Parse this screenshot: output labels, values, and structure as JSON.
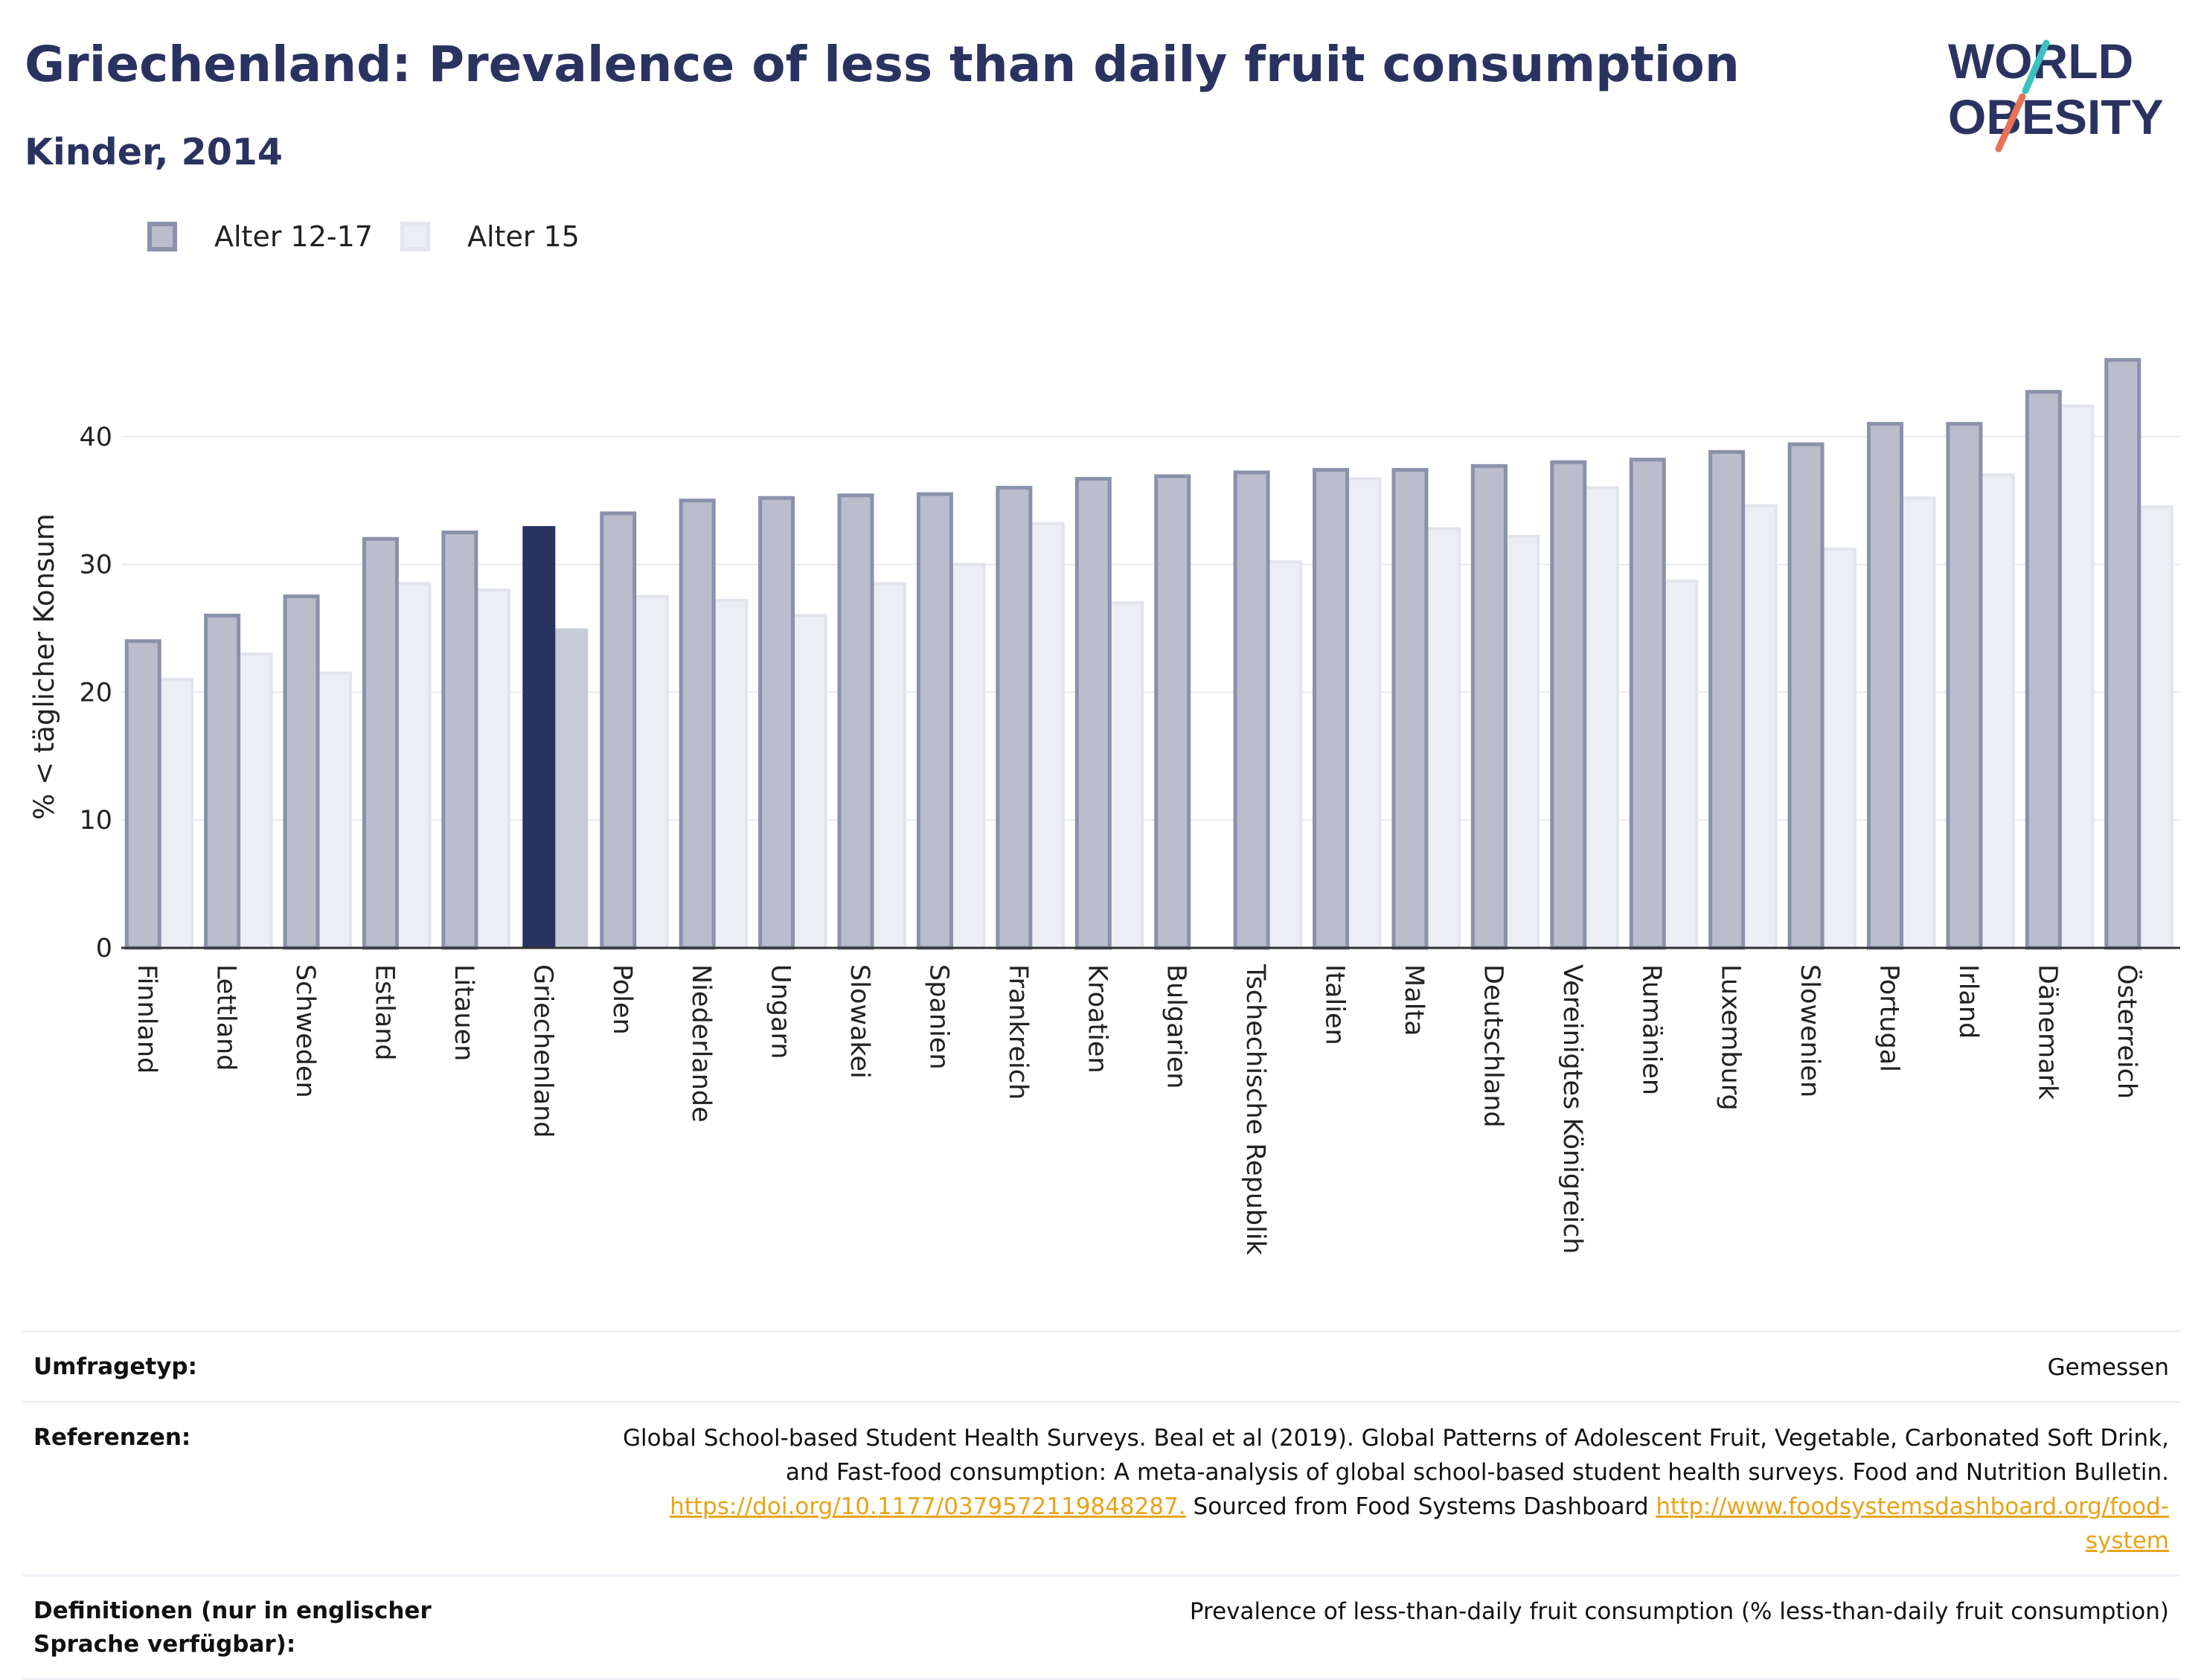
{
  "header": {
    "title": "Griechenland: Prevalence of less than daily fruit consumption",
    "subtitle": "Kinder, 2014"
  },
  "logo": {
    "line1": "WORLD",
    "line2": "OBESITY"
  },
  "colors": {
    "series1": "#b9bdcc",
    "series1_border": "#8a91ab",
    "series2": "#eceef3",
    "highlight1": "#2a3360",
    "highlight2": "#c8cbd8",
    "text": "#2a3360",
    "link": "#e8a317"
  },
  "chart_data": {
    "type": "bar",
    "title": "Griechenland: Prevalence of less than daily fruit consumption",
    "subtitle": "Kinder, 2014",
    "ylabel": "% < täglicher Konsum",
    "xlabel": "",
    "ylim": [
      0,
      50
    ],
    "yticks": [
      0,
      10,
      20,
      30,
      40
    ],
    "grid": true,
    "legend_placement": "top-left",
    "highlight_category": "Griechenland",
    "categories": [
      "Finnland",
      "Lettland",
      "Schweden",
      "Estland",
      "Litauen",
      "Griechenland",
      "Polen",
      "Niederlande",
      "Ungarn",
      "Slowakei",
      "Spanien",
      "Frankreich",
      "Kroatien",
      "Bulgarien",
      "Tschechische Republik",
      "Italien",
      "Malta",
      "Deutschland",
      "Vereinigtes Königreich",
      "Rumänien",
      "Luxemburg",
      "Slowenien",
      "Portugal",
      "Irland",
      "Dänemark",
      "Österreich"
    ],
    "series": [
      {
        "name": "Alter 12-17",
        "values": [
          24,
          26,
          27.5,
          32,
          32.5,
          33,
          34,
          35,
          35.2,
          35.4,
          35.5,
          36,
          36.7,
          36.9,
          37.2,
          37.4,
          37.4,
          37.7,
          38,
          38.2,
          38.8,
          39.4,
          41,
          41,
          43.5,
          46
        ]
      },
      {
        "name": "Alter 15",
        "values": [
          21,
          23,
          21.5,
          28.5,
          28,
          25,
          27.5,
          27.2,
          26,
          28.5,
          30,
          33.2,
          27,
          null,
          30.2,
          36.7,
          32.8,
          32.2,
          36,
          28.7,
          34.6,
          31.2,
          35.2,
          37,
          42.4,
          34.5
        ]
      }
    ]
  },
  "meta": {
    "survey_type_label": "Umfragetyp:",
    "survey_type_value": "Gemessen",
    "references_label": "Referenzen:",
    "references_text": "Global School-based Student Health Surveys. Beal et al (2019). Global Patterns of Adolescent Fruit, Vegetable, Carbonated Soft Drink, and Fast-food consumption: A meta-analysis of global school-based student health surveys. Food and Nutrition Bulletin.",
    "references_link1": "https://doi.org/10.1177/0379572119848287.",
    "references_sourced": "Sourced from Food Systems Dashboard",
    "references_link2": "http://www.foodsystemsdashboard.org/food-system",
    "definitions_label": "Definitionen (nur in englischer Sprache verfügbar):",
    "definitions_value": "Prevalence of less-than-daily fruit consumption (% less-than-daily fruit consumption)"
  }
}
